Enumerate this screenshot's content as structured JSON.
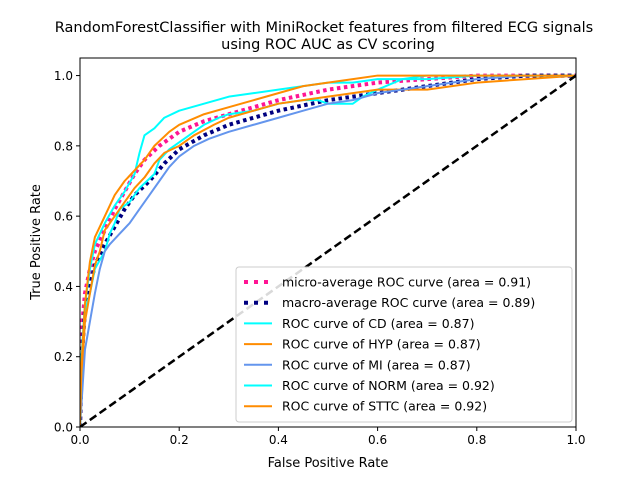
{
  "chart_data": {
    "type": "line",
    "title": "RandomForestClassifier with MiniRocket features from filtered ECG signals",
    "subtitle": "using ROC AUC as CV scoring",
    "xlabel": "False Positive Rate",
    "ylabel": "True Positive Rate",
    "xlim": [
      0.0,
      1.0
    ],
    "ylim": [
      0.0,
      1.05
    ],
    "xticks": [
      "0.0",
      "0.2",
      "0.4",
      "0.6",
      "0.8",
      "1.0"
    ],
    "yticks": [
      "0.0",
      "0.2",
      "0.4",
      "0.6",
      "0.8",
      "1.0"
    ],
    "grid": false,
    "legend_placement": "lower right",
    "series": [
      {
        "name": "micro-average ROC curve (area = 0.91)",
        "color": "#ff1493",
        "style": "dotted",
        "points": [
          [
            0,
            0
          ],
          [
            0.002,
            0.15
          ],
          [
            0.005,
            0.3
          ],
          [
            0.01,
            0.38
          ],
          [
            0.02,
            0.45
          ],
          [
            0.03,
            0.5
          ],
          [
            0.05,
            0.56
          ],
          [
            0.07,
            0.62
          ],
          [
            0.09,
            0.67
          ],
          [
            0.11,
            0.72
          ],
          [
            0.13,
            0.76
          ],
          [
            0.16,
            0.8
          ],
          [
            0.2,
            0.84
          ],
          [
            0.25,
            0.87
          ],
          [
            0.3,
            0.89
          ],
          [
            0.35,
            0.91
          ],
          [
            0.4,
            0.93
          ],
          [
            0.5,
            0.96
          ],
          [
            0.6,
            0.98
          ],
          [
            0.7,
            0.99
          ],
          [
            0.8,
            1.0
          ],
          [
            1.0,
            1.0
          ]
        ]
      },
      {
        "name": "macro-average ROC curve (area = 0.89)",
        "color": "#000080",
        "style": "dotted",
        "points": [
          [
            0,
            0
          ],
          [
            0.003,
            0.15
          ],
          [
            0.006,
            0.25
          ],
          [
            0.01,
            0.33
          ],
          [
            0.02,
            0.4
          ],
          [
            0.03,
            0.46
          ],
          [
            0.05,
            0.52
          ],
          [
            0.07,
            0.57
          ],
          [
            0.09,
            0.62
          ],
          [
            0.11,
            0.66
          ],
          [
            0.14,
            0.7
          ],
          [
            0.17,
            0.75
          ],
          [
            0.2,
            0.79
          ],
          [
            0.25,
            0.83
          ],
          [
            0.3,
            0.86
          ],
          [
            0.35,
            0.88
          ],
          [
            0.4,
            0.9
          ],
          [
            0.5,
            0.93
          ],
          [
            0.6,
            0.95
          ],
          [
            0.7,
            0.97
          ],
          [
            0.8,
            0.99
          ],
          [
            0.9,
            1.0
          ],
          [
            1.0,
            1.0
          ]
        ]
      },
      {
        "name": "ROC curve of CD (area = 0.87)",
        "color": "#00ffff",
        "style": "solid",
        "points": [
          [
            0,
            0
          ],
          [
            0.005,
            0.2
          ],
          [
            0.01,
            0.33
          ],
          [
            0.02,
            0.38
          ],
          [
            0.03,
            0.45
          ],
          [
            0.05,
            0.5
          ],
          [
            0.06,
            0.55
          ],
          [
            0.07,
            0.58
          ],
          [
            0.08,
            0.62
          ],
          [
            0.1,
            0.64
          ],
          [
            0.12,
            0.68
          ],
          [
            0.15,
            0.72
          ],
          [
            0.16,
            0.76
          ],
          [
            0.18,
            0.79
          ],
          [
            0.2,
            0.81
          ],
          [
            0.22,
            0.83
          ],
          [
            0.25,
            0.86
          ],
          [
            0.28,
            0.88
          ],
          [
            0.3,
            0.89
          ],
          [
            0.35,
            0.9
          ],
          [
            0.4,
            0.92
          ],
          [
            0.45,
            0.93
          ],
          [
            0.48,
            0.93
          ],
          [
            0.5,
            0.92
          ],
          [
            0.55,
            0.92
          ],
          [
            0.57,
            0.94
          ],
          [
            0.6,
            0.96
          ],
          [
            0.65,
            0.99
          ],
          [
            0.7,
            1.0
          ],
          [
            1.0,
            1.0
          ]
        ]
      },
      {
        "name": "ROC curve of HYP (area = 0.87)",
        "color": "#ff8c00",
        "style": "solid",
        "points": [
          [
            0,
            0
          ],
          [
            0.005,
            0.18
          ],
          [
            0.01,
            0.3
          ],
          [
            0.02,
            0.38
          ],
          [
            0.03,
            0.46
          ],
          [
            0.04,
            0.5
          ],
          [
            0.05,
            0.56
          ],
          [
            0.07,
            0.6
          ],
          [
            0.09,
            0.64
          ],
          [
            0.11,
            0.68
          ],
          [
            0.13,
            0.71
          ],
          [
            0.15,
            0.75
          ],
          [
            0.17,
            0.78
          ],
          [
            0.2,
            0.8
          ],
          [
            0.23,
            0.83
          ],
          [
            0.27,
            0.86
          ],
          [
            0.3,
            0.88
          ],
          [
            0.35,
            0.9
          ],
          [
            0.4,
            0.92
          ],
          [
            0.45,
            0.93
          ],
          [
            0.5,
            0.94
          ],
          [
            0.55,
            0.95
          ],
          [
            0.6,
            0.96
          ],
          [
            0.65,
            0.96
          ],
          [
            0.7,
            0.96
          ],
          [
            0.75,
            0.97
          ],
          [
            0.8,
            0.98
          ],
          [
            0.9,
            0.99
          ],
          [
            1.0,
            1.0
          ]
        ]
      },
      {
        "name": "ROC curve of MI (area = 0.87)",
        "color": "#6495ed",
        "style": "solid",
        "points": [
          [
            0,
            0
          ],
          [
            0.01,
            0.22
          ],
          [
            0.02,
            0.3
          ],
          [
            0.03,
            0.38
          ],
          [
            0.04,
            0.45
          ],
          [
            0.05,
            0.5
          ],
          [
            0.06,
            0.52
          ],
          [
            0.08,
            0.55
          ],
          [
            0.1,
            0.58
          ],
          [
            0.12,
            0.62
          ],
          [
            0.14,
            0.66
          ],
          [
            0.16,
            0.7
          ],
          [
            0.18,
            0.74
          ],
          [
            0.2,
            0.77
          ],
          [
            0.23,
            0.8
          ],
          [
            0.26,
            0.82
          ],
          [
            0.3,
            0.84
          ],
          [
            0.35,
            0.86
          ],
          [
            0.4,
            0.88
          ],
          [
            0.45,
            0.9
          ],
          [
            0.5,
            0.92
          ],
          [
            0.55,
            0.93
          ],
          [
            0.6,
            0.95
          ],
          [
            0.7,
            0.97
          ],
          [
            0.8,
            0.99
          ],
          [
            0.9,
            1.0
          ],
          [
            1.0,
            1.0
          ]
        ]
      },
      {
        "name": "ROC curve of NORM (area = 0.92)",
        "color": "#00ffff",
        "style": "solid",
        "points": [
          [
            0,
            0
          ],
          [
            0.003,
            0.2
          ],
          [
            0.01,
            0.35
          ],
          [
            0.02,
            0.45
          ],
          [
            0.03,
            0.52
          ],
          [
            0.05,
            0.58
          ],
          [
            0.07,
            0.63
          ],
          [
            0.09,
            0.67
          ],
          [
            0.11,
            0.72
          ],
          [
            0.12,
            0.78
          ],
          [
            0.13,
            0.83
          ],
          [
            0.15,
            0.85
          ],
          [
            0.17,
            0.88
          ],
          [
            0.2,
            0.9
          ],
          [
            0.25,
            0.92
          ],
          [
            0.3,
            0.94
          ],
          [
            0.35,
            0.95
          ],
          [
            0.4,
            0.96
          ],
          [
            0.45,
            0.97
          ],
          [
            0.5,
            0.98
          ],
          [
            0.55,
            0.98
          ],
          [
            0.6,
            0.99
          ],
          [
            0.7,
            0.99
          ],
          [
            0.8,
            1.0
          ],
          [
            1.0,
            1.0
          ]
        ]
      },
      {
        "name": "ROC curve of STTC (area = 0.92)",
        "color": "#ff8c00",
        "style": "solid",
        "points": [
          [
            0,
            0
          ],
          [
            0.003,
            0.18
          ],
          [
            0.01,
            0.35
          ],
          [
            0.02,
            0.47
          ],
          [
            0.03,
            0.54
          ],
          [
            0.05,
            0.6
          ],
          [
            0.07,
            0.66
          ],
          [
            0.09,
            0.7
          ],
          [
            0.11,
            0.73
          ],
          [
            0.13,
            0.76
          ],
          [
            0.15,
            0.8
          ],
          [
            0.18,
            0.84
          ],
          [
            0.2,
            0.86
          ],
          [
            0.25,
            0.89
          ],
          [
            0.3,
            0.91
          ],
          [
            0.35,
            0.93
          ],
          [
            0.4,
            0.95
          ],
          [
            0.45,
            0.97
          ],
          [
            0.5,
            0.98
          ],
          [
            0.55,
            0.99
          ],
          [
            0.6,
            1.0
          ],
          [
            1.0,
            1.0
          ]
        ]
      },
      {
        "name": "",
        "color": "#000000",
        "style": "dashed",
        "points": [
          [
            0,
            0
          ],
          [
            1,
            1
          ]
        ]
      }
    ],
    "legend": [
      {
        "label": "micro-average ROC curve (area = 0.91)",
        "color": "#ff1493",
        "style": "dotted"
      },
      {
        "label": "macro-average ROC curve (area = 0.89)",
        "color": "#000080",
        "style": "dotted"
      },
      {
        "label": "ROC curve of CD (area = 0.87)",
        "color": "#00ffff",
        "style": "solid"
      },
      {
        "label": "ROC curve of HYP (area = 0.87)",
        "color": "#ff8c00",
        "style": "solid"
      },
      {
        "label": "ROC curve of MI (area = 0.87)",
        "color": "#6495ed",
        "style": "solid"
      },
      {
        "label": "ROC curve of NORM (area = 0.92)",
        "color": "#00ffff",
        "style": "solid"
      },
      {
        "label": "ROC curve of STTC (area = 0.92)",
        "color": "#ff8c00",
        "style": "solid"
      }
    ]
  }
}
